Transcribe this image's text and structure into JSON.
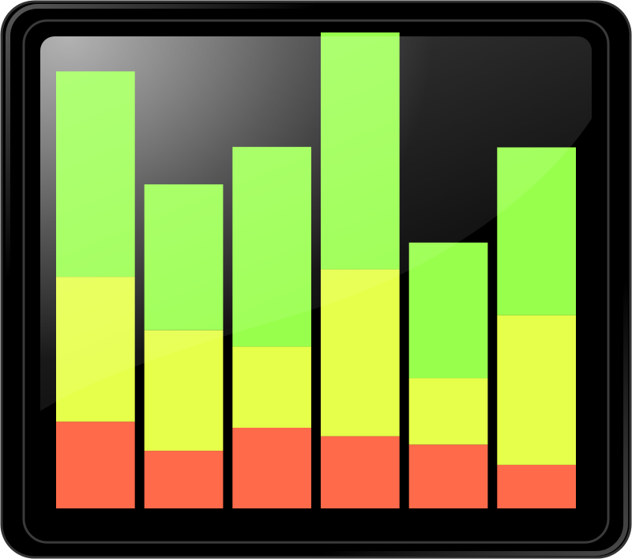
{
  "icon": {
    "name": "stacked-bar-chart-icon",
    "colors": {
      "frame": "#000000",
      "frame_highlight": "#6a6a6a",
      "screen_top": "#8a8a8a",
      "screen_bottom": "#000000",
      "segment_bottom": "#ff6a4a",
      "segment_middle": "#e6ff4a",
      "segment_top": "#99ff4d"
    }
  },
  "chart_data": {
    "type": "bar",
    "stacked": true,
    "categories": [
      "",
      "",
      "",
      "",
      "",
      ""
    ],
    "ylim": [
      0,
      100
    ],
    "grid": false,
    "legend": "none",
    "series": [
      {
        "color": "#ff6a4a",
        "values": [
          18.5,
          12.3,
          17.2,
          15.4,
          13.6,
          9.3
        ]
      },
      {
        "color": "#e6ff4a",
        "values": [
          30.9,
          25.7,
          17.3,
          35.6,
          14.2,
          31.9
        ]
      },
      {
        "color": "#99ff4d",
        "values": [
          43.8,
          31.1,
          42.6,
          50.5,
          28.9,
          35.8
        ]
      }
    ]
  }
}
